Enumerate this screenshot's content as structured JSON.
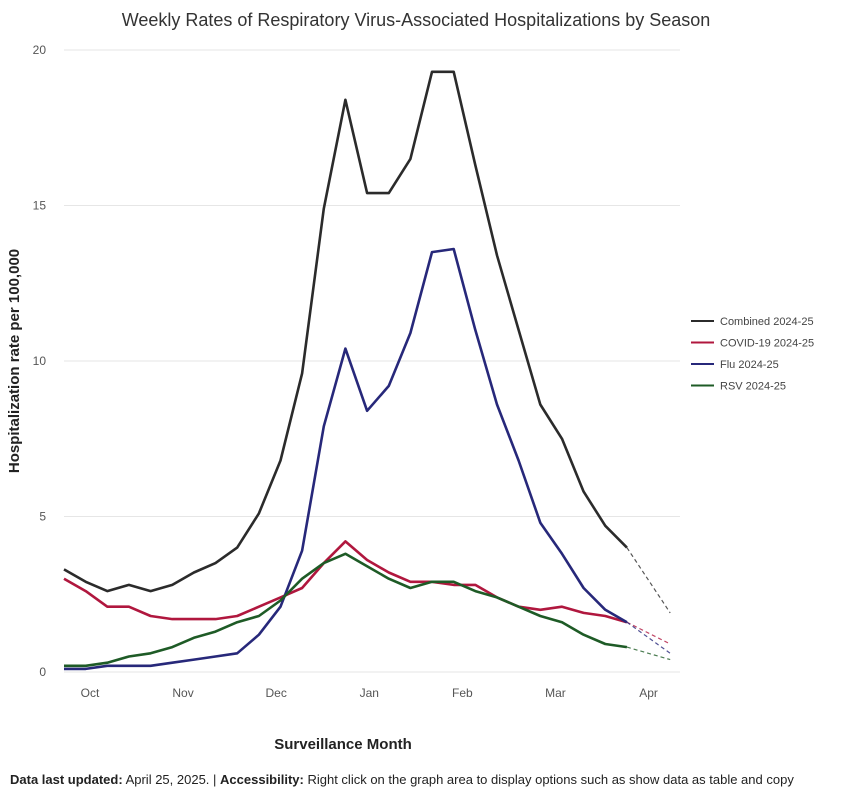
{
  "chart_data": {
    "type": "line",
    "title": "Weekly Rates of Respiratory Virus-Associated Hospitalizations by Season",
    "xlabel": "Surveillance Month",
    "ylabel": "Hospitalization rate per 100,000",
    "ylim": [
      0,
      20
    ],
    "yticks": [
      "0",
      "5",
      "10",
      "15",
      "20"
    ],
    "xticks": [
      {
        "label": "Oct",
        "x": 1.2
      },
      {
        "label": "Nov",
        "x": 5.5
      },
      {
        "label": "Dec",
        "x": 9.8
      },
      {
        "label": "Jan",
        "x": 14.1
      },
      {
        "label": "Feb",
        "x": 18.4
      },
      {
        "label": "Mar",
        "x": 22.7
      },
      {
        "label": "Apr",
        "x": 27.0
      }
    ],
    "grid": true,
    "legend_position": "right",
    "series": [
      {
        "name": "Combined 2024-25",
        "color": "#2b2b2b",
        "values": [
          3.3,
          2.9,
          2.6,
          2.8,
          2.6,
          2.8,
          3.2,
          3.5,
          4.0,
          5.1,
          6.8,
          9.6,
          14.9,
          18.4,
          15.4,
          15.4,
          16.5,
          19.3,
          19.3,
          16.3,
          13.4,
          11.0,
          8.6,
          7.5,
          5.8,
          4.7,
          4.0
        ],
        "projection": [
          4.0,
          1.9
        ]
      },
      {
        "name": "COVID-19 2024-25",
        "color": "#b0173e",
        "values": [
          3.0,
          2.6,
          2.1,
          2.1,
          1.8,
          1.7,
          1.7,
          1.7,
          1.8,
          2.1,
          2.4,
          2.7,
          3.5,
          4.2,
          3.6,
          3.2,
          2.9,
          2.9,
          2.8,
          2.8,
          2.4,
          2.1,
          2.0,
          2.1,
          1.9,
          1.8,
          1.6
        ],
        "projection": [
          1.6,
          0.9
        ]
      },
      {
        "name": "Flu 2024-25",
        "color": "#27287a",
        "values": [
          0.1,
          0.1,
          0.2,
          0.2,
          0.2,
          0.3,
          0.4,
          0.5,
          0.6,
          1.2,
          2.1,
          3.9,
          7.9,
          10.4,
          8.4,
          9.2,
          10.9,
          13.5,
          13.6,
          11.0,
          8.6,
          6.8,
          4.8,
          3.8,
          2.7,
          2.0,
          1.6
        ],
        "projection": [
          1.6,
          0.6
        ]
      },
      {
        "name": "RSV 2024-25",
        "color": "#1e5b26",
        "values": [
          0.2,
          0.2,
          0.3,
          0.5,
          0.6,
          0.8,
          1.1,
          1.3,
          1.6,
          1.8,
          2.3,
          3.0,
          3.5,
          3.8,
          3.4,
          3.0,
          2.7,
          2.9,
          2.9,
          2.6,
          2.4,
          2.1,
          1.8,
          1.6,
          1.2,
          0.9,
          0.8
        ],
        "projection": [
          0.8,
          0.4
        ]
      }
    ]
  },
  "footer": {
    "updated_label": "Data last updated:",
    "updated_value": " April 25, 2025. | ",
    "accessibility_label": "Accessibility:",
    "accessibility_text": " Right click on the graph area to display options such as show data as table and copy"
  }
}
